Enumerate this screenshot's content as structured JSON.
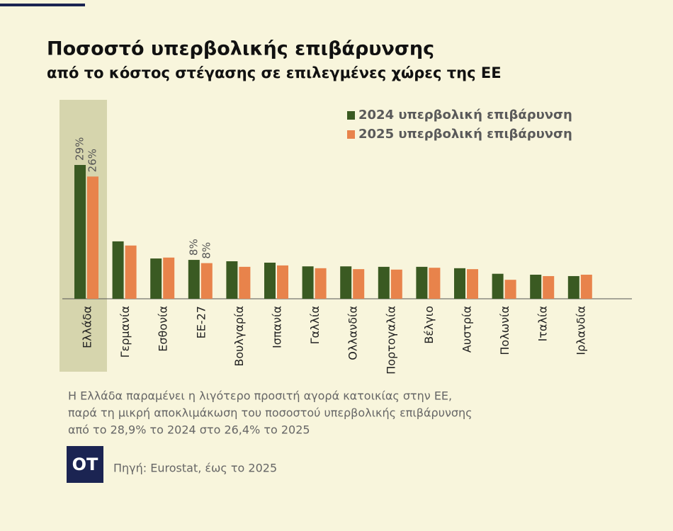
{
  "chart_data": {
    "type": "bar",
    "title": "Ποσοστό υπερβολικής επιβάρυνσης",
    "subtitle": "από το κόστος στέγασης σε επιλεγμένες χώρες της ΕΕ",
    "categories": [
      "Ελλάδα",
      "Γερμανία",
      "Εσθονία",
      "ΕΕ-27",
      "Βουλγαρία",
      "Ισπανία",
      "Γαλλία",
      "Ολλανδία",
      "Πορτογαλία",
      "Βέλγιο",
      "Αυστρία",
      "Πολωνία",
      "Ιταλία",
      "Ιρλανδία"
    ],
    "series": [
      {
        "name": "2024 υπερβολική επιβάρυνση",
        "color": "#3a5a22",
        "values": [
          28.9,
          12.4,
          8.7,
          8.4,
          8.1,
          7.8,
          7.0,
          7.0,
          6.9,
          6.9,
          6.6,
          5.4,
          5.2,
          4.9
        ],
        "value_labels": [
          "29%",
          null,
          null,
          "8%",
          null,
          null,
          null,
          null,
          null,
          null,
          null,
          null,
          null,
          null
        ]
      },
      {
        "name": "2025 υπερβολική επιβάρυνση",
        "color": "#e8834b",
        "values": [
          26.4,
          11.5,
          8.9,
          7.7,
          6.9,
          7.2,
          6.6,
          6.4,
          6.3,
          6.7,
          6.4,
          4.1,
          4.9,
          5.2
        ],
        "value_labels": [
          "26%",
          null,
          null,
          "8%",
          null,
          null,
          null,
          null,
          null,
          null,
          null,
          null,
          null,
          null
        ]
      }
    ],
    "highlight_color": "#d6d5ad",
    "annotation": [
      "Η Ελλάδα παραμένει η λιγότερο προσιτή αγορά κατοικίας στην ΕΕ,",
      "παρά τη μικρή αποκλιμάκωση του ποσοστού υπερβολικής επιβάρυνσης",
      "από το 28,9% το 2024 στο 26,4% το 2025"
    ],
    "logo": "OT",
    "source": "Πηγή: Eurostat, έως το 2025"
  }
}
